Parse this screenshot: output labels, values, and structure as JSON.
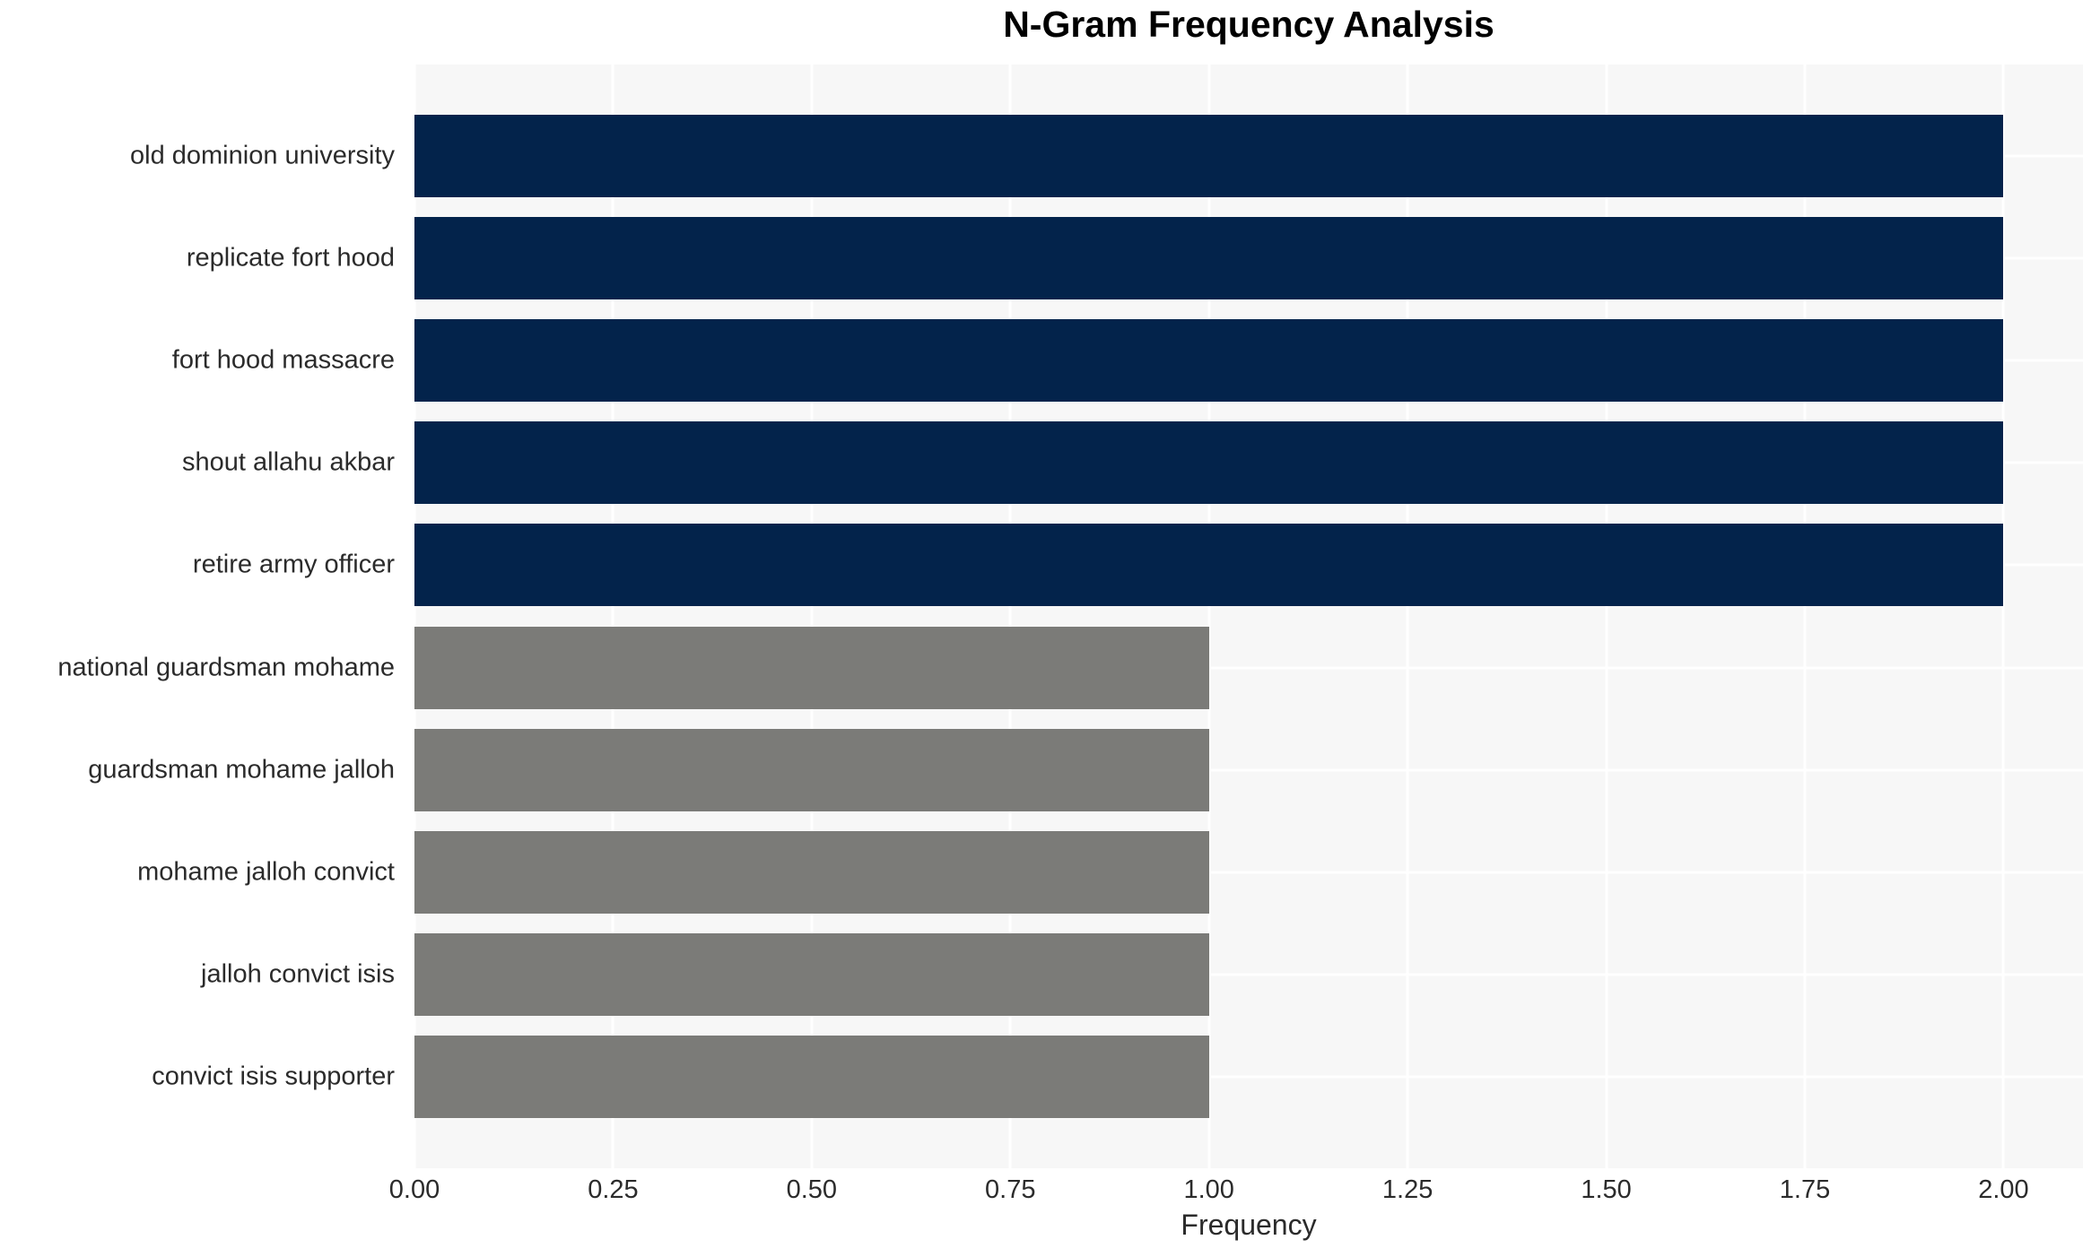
{
  "chart_data": {
    "type": "bar",
    "orientation": "horizontal",
    "title": "N-Gram Frequency Analysis",
    "xlabel": "Frequency",
    "ylabel": "",
    "categories": [
      "old dominion university",
      "replicate fort hood",
      "fort hood massacre",
      "shout allahu akbar",
      "retire army officer",
      "national guardsman mohame",
      "guardsman mohame jalloh",
      "mohame jalloh convict",
      "jalloh convict isis",
      "convict isis supporter"
    ],
    "values": [
      2,
      2,
      2,
      2,
      2,
      1,
      1,
      1,
      1,
      1
    ],
    "bar_colors": [
      "#03234b",
      "#03234b",
      "#03234b",
      "#03234b",
      "#03234b",
      "#7b7b78",
      "#7b7b78",
      "#7b7b78",
      "#7b7b78",
      "#7b7b78"
    ],
    "xlim": [
      0,
      2.1
    ],
    "xticks": [
      {
        "value": 0.0,
        "label": "0.00"
      },
      {
        "value": 0.25,
        "label": "0.25"
      },
      {
        "value": 0.5,
        "label": "0.50"
      },
      {
        "value": 0.75,
        "label": "0.75"
      },
      {
        "value": 1.0,
        "label": "1.00"
      },
      {
        "value": 1.25,
        "label": "1.25"
      },
      {
        "value": 1.5,
        "label": "1.50"
      },
      {
        "value": 1.75,
        "label": "1.75"
      },
      {
        "value": 2.0,
        "label": "2.00"
      }
    ],
    "grid": true,
    "legend": false,
    "colors": {
      "plot_background": "#f7f7f7",
      "gridline": "#ffffff",
      "tick_text": "#2b2b2b",
      "title_text": "#000000",
      "high_value_bar": "#03234b",
      "low_value_bar": "#7b7b78"
    }
  }
}
